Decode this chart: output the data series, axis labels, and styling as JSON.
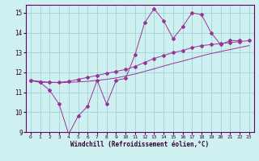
{
  "xlabel": "Windchill (Refroidissement éolien,°C)",
  "bg_color": "#cff0f0",
  "line_color": "#993399",
  "grid_color": "#99cccc",
  "xlim": [
    -0.5,
    23.5
  ],
  "ylim": [
    9,
    15.4
  ],
  "xticks": [
    0,
    1,
    2,
    3,
    4,
    5,
    6,
    7,
    8,
    9,
    10,
    11,
    12,
    13,
    14,
    15,
    16,
    17,
    18,
    19,
    20,
    21,
    22,
    23
  ],
  "yticks": [
    9,
    10,
    11,
    12,
    13,
    14,
    15
  ],
  "line1_x": [
    0,
    1,
    2,
    3,
    4,
    5,
    6,
    7,
    8,
    9,
    10,
    11,
    12,
    13,
    14,
    15,
    16,
    17,
    18,
    19,
    20,
    21,
    22
  ],
  "line1_y": [
    11.6,
    11.5,
    11.1,
    10.4,
    8.9,
    9.8,
    10.3,
    11.6,
    10.4,
    11.6,
    11.7,
    12.9,
    14.5,
    15.2,
    14.6,
    13.7,
    14.3,
    15.0,
    14.9,
    14.0,
    13.4,
    13.6,
    13.6
  ],
  "line2_x": [
    0,
    1,
    2,
    3,
    4,
    5,
    6,
    7,
    8,
    9,
    10,
    11,
    12,
    13,
    14,
    15,
    16,
    17,
    18,
    19,
    20,
    21,
    22,
    23
  ],
  "line2_y": [
    11.6,
    11.5,
    11.5,
    11.5,
    11.55,
    11.65,
    11.75,
    11.85,
    11.95,
    12.05,
    12.15,
    12.3,
    12.5,
    12.7,
    12.85,
    13.0,
    13.1,
    13.25,
    13.35,
    13.4,
    13.45,
    13.5,
    13.55,
    13.6
  ],
  "line3_x": [
    0,
    1,
    2,
    3,
    4,
    5,
    6,
    7,
    8,
    9,
    10,
    11,
    12,
    13,
    14,
    15,
    16,
    17,
    18,
    19,
    20,
    21,
    22,
    23
  ],
  "line3_y": [
    11.6,
    11.55,
    11.5,
    11.48,
    11.5,
    11.52,
    11.55,
    11.6,
    11.65,
    11.72,
    11.82,
    11.92,
    12.05,
    12.18,
    12.32,
    12.45,
    12.57,
    12.7,
    12.83,
    12.95,
    13.05,
    13.15,
    13.25,
    13.35
  ]
}
